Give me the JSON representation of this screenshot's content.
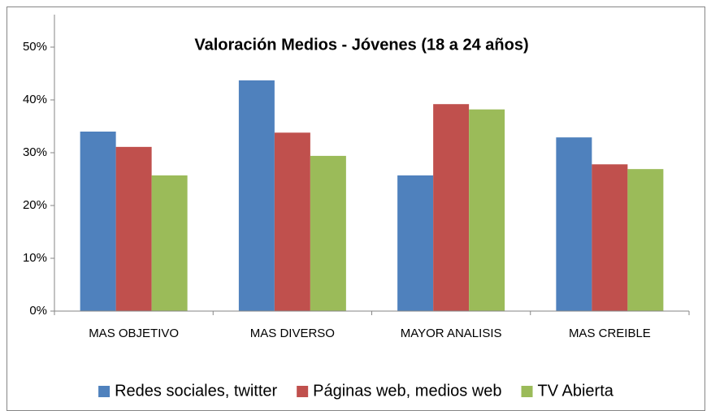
{
  "chart_data": {
    "type": "bar",
    "title": "Valoración Medios - Jóvenes (18 a 24 años)",
    "categories": [
      "MAS OBJETIVO",
      "MAS DIVERSO",
      "MAYOR ANALISIS",
      "MAS CREIBLE"
    ],
    "series": [
      {
        "name": "Redes sociales, twitter",
        "color": "#4f81bd",
        "values": [
          34.0,
          43.7,
          25.7,
          32.9
        ]
      },
      {
        "name": "Páginas web, medios web",
        "color": "#c0504d",
        "values": [
          31.1,
          33.8,
          39.2,
          27.8
        ]
      },
      {
        "name": "TV Abierta",
        "color": "#9bbb59",
        "values": [
          25.7,
          29.4,
          38.2,
          26.9
        ]
      }
    ],
    "ylim": [
      0,
      50
    ],
    "yticks": [
      {
        "value": 0,
        "label": "0%"
      },
      {
        "value": 10,
        "label": "10%"
      },
      {
        "value": 20,
        "label": "20%"
      },
      {
        "value": 30,
        "label": "30%"
      },
      {
        "value": 40,
        "label": "40%"
      },
      {
        "value": 50,
        "label": "50%"
      }
    ],
    "grid": false,
    "legend": "bottom"
  }
}
